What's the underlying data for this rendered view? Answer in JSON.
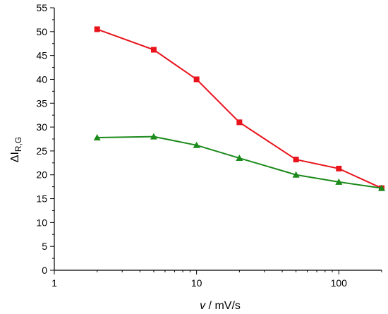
{
  "chart_data": {
    "type": "line",
    "x_scale": "log",
    "xlim": [
      1,
      200
    ],
    "ylim": [
      0,
      55
    ],
    "xlabel_italic": "v",
    "xlabel_rest": " / mV/s",
    "ylabel_main": "ΔI",
    "ylabel_sub": "R,G",
    "x_major_ticks": [
      1,
      10,
      100
    ],
    "x_tick_labels": [
      "1",
      "10",
      "100"
    ],
    "y_major_ticks": [
      0,
      5,
      10,
      15,
      20,
      25,
      30,
      35,
      40,
      45,
      50,
      55
    ],
    "y_tick_labels": [
      "0",
      "5",
      "10",
      "15",
      "20",
      "25",
      "30",
      "35",
      "40",
      "45",
      "50",
      "55"
    ],
    "grid": false,
    "legend": "none",
    "series": [
      {
        "marker": "square",
        "color": "#e8131b",
        "x": [
          2,
          5,
          10,
          20,
          50,
          100,
          200
        ],
        "y": [
          50.5,
          46.2,
          40.0,
          31.0,
          23.2,
          21.3,
          17.2
        ]
      },
      {
        "marker": "triangle",
        "color": "#1a8a1a",
        "x": [
          2,
          5,
          10,
          20,
          50,
          100,
          200
        ],
        "y": [
          27.8,
          28.0,
          26.2,
          23.5,
          20.0,
          18.5,
          17.2
        ]
      }
    ]
  }
}
